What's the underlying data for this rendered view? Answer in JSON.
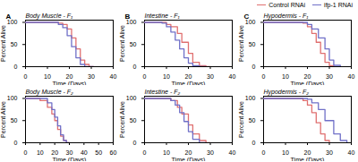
{
  "chart_data": [
    {
      "type": "step",
      "title": "Body Muscle - F₁",
      "annotations": [
        "A"
      ],
      "xlabel": "Time (Days)",
      "ylabel": "Percent Alive",
      "xlim": [
        0,
        40
      ],
      "ylim": [
        0,
        105
      ],
      "xticks": [
        0,
        10,
        20,
        30,
        40
      ],
      "yticks": [
        0,
        50,
        100
      ],
      "grid": false,
      "legend": "upper right",
      "series": [
        {
          "name": "Control RNAi",
          "color": "#e07070",
          "x": [
            0,
            5,
            10,
            15,
            17,
            19,
            21,
            23,
            25,
            27,
            29,
            31
          ],
          "values": [
            100,
            100,
            100,
            98,
            95,
            85,
            65,
            40,
            15,
            5,
            0,
            0
          ]
        },
        {
          "name": "ifp-1 RNAi",
          "color": "#7070c8",
          "x": [
            0,
            5,
            10,
            15,
            17,
            19,
            21,
            23,
            25,
            27,
            29,
            31
          ],
          "values": [
            100,
            100,
            100,
            95,
            88,
            70,
            45,
            20,
            5,
            0,
            0,
            0
          ]
        }
      ]
    },
    {
      "type": "step",
      "title": "Intestine - F₁",
      "annotations": [
        "B"
      ],
      "xlabel": "Time (Days)",
      "ylabel": "Percent Alive",
      "xlim": [
        0,
        40
      ],
      "ylim": [
        0,
        105
      ],
      "xticks": [
        0,
        10,
        20,
        30,
        40
      ],
      "yticks": [
        0,
        50,
        100
      ],
      "grid": false,
      "series": [
        {
          "name": "Control RNAi",
          "color": "#e07070",
          "x": [
            0,
            5,
            8,
            10,
            12,
            15,
            17,
            20,
            22,
            25,
            28,
            30
          ],
          "values": [
            100,
            100,
            100,
            95,
            90,
            75,
            55,
            30,
            10,
            2,
            0,
            0
          ]
        },
        {
          "name": "ifp-1 RNAi",
          "color": "#7070c8",
          "x": [
            0,
            5,
            8,
            10,
            12,
            14,
            16,
            18,
            20,
            22,
            25,
            28
          ],
          "values": [
            100,
            100,
            98,
            90,
            78,
            60,
            40,
            20,
            8,
            2,
            0,
            0
          ]
        }
      ]
    },
    {
      "type": "step",
      "title": "Hypodermis - F₁",
      "annotations": [
        "C"
      ],
      "xlabel": "Time (Days)",
      "ylabel": "Percent Alive",
      "xlim": [
        0,
        40
      ],
      "ylim": [
        0,
        105
      ],
      "xticks": [
        0,
        10,
        20,
        30,
        40
      ],
      "yticks": [
        0,
        50,
        100
      ],
      "grid": false,
      "series": [
        {
          "name": "Control RNAi",
          "color": "#e07070",
          "x": [
            0,
            5,
            10,
            15,
            18,
            20,
            22,
            24,
            26,
            28,
            30,
            32
          ],
          "values": [
            100,
            100,
            100,
            100,
            98,
            90,
            75,
            55,
            30,
            10,
            2,
            0
          ]
        },
        {
          "name": "ifp-1 RNAi",
          "color": "#7070c8",
          "x": [
            0,
            5,
            10,
            15,
            18,
            20,
            22,
            25,
            28,
            30,
            32,
            35
          ],
          "values": [
            100,
            100,
            100,
            100,
            100,
            95,
            85,
            65,
            40,
            15,
            3,
            0
          ]
        }
      ]
    },
    {
      "type": "step",
      "title": "Body Muscle - F₂",
      "xlabel": "Time (Days)",
      "ylabel": "Percent Alive",
      "xlim": [
        0,
        60
      ],
      "ylim": [
        0,
        105
      ],
      "xticks": [
        0,
        10,
        20,
        30,
        40,
        50,
        60
      ],
      "yticks": [
        0,
        50,
        100
      ],
      "grid": false,
      "series": [
        {
          "name": "Control RNAi",
          "color": "#e07070",
          "x": [
            0,
            5,
            10,
            15,
            18,
            20,
            22,
            24,
            26,
            28,
            30
          ],
          "values": [
            100,
            100,
            95,
            80,
            65,
            50,
            30,
            15,
            5,
            0,
            0
          ]
        },
        {
          "name": "ifp-1 RNAi",
          "color": "#7070c8",
          "x": [
            0,
            5,
            10,
            15,
            18,
            20,
            22,
            24,
            26,
            28,
            30
          ],
          "values": [
            100,
            100,
            100,
            90,
            75,
            58,
            38,
            18,
            5,
            0,
            0
          ]
        }
      ]
    },
    {
      "type": "step",
      "title": "Intestine - F₂",
      "xlabel": "Time (Days)",
      "ylabel": "Percent Alive",
      "xlim": [
        0,
        40
      ],
      "ylim": [
        0,
        105
      ],
      "xticks": [
        0,
        10,
        20,
        30,
        40
      ],
      "yticks": [
        0,
        50,
        100
      ],
      "grid": false,
      "series": [
        {
          "name": "Control RNAi",
          "color": "#e07070",
          "x": [
            0,
            5,
            10,
            12,
            15,
            17,
            20,
            22,
            25,
            28,
            30
          ],
          "values": [
            100,
            100,
            100,
            95,
            80,
            65,
            40,
            20,
            5,
            0,
            0
          ]
        },
        {
          "name": "ifp-1 RNAi",
          "color": "#7070c8",
          "x": [
            0,
            5,
            10,
            12,
            14,
            16,
            18,
            20,
            22,
            25,
            28
          ],
          "values": [
            100,
            100,
            100,
            95,
            85,
            68,
            48,
            25,
            8,
            0,
            0
          ]
        }
      ]
    },
    {
      "type": "step",
      "title": "Hypodermis - F₂",
      "xlabel": "Time (Days)",
      "ylabel": "Percent Alive",
      "xlim": [
        0,
        40
      ],
      "ylim": [
        0,
        105
      ],
      "xticks": [
        0,
        10,
        20,
        30,
        40
      ],
      "yticks": [
        0,
        50,
        100
      ],
      "grid": false,
      "series": [
        {
          "name": "Control RNAi",
          "color": "#e07070",
          "x": [
            0,
            5,
            10,
            15,
            18,
            20,
            22,
            24,
            26,
            28,
            30
          ],
          "values": [
            100,
            100,
            100,
            100,
            95,
            85,
            68,
            45,
            20,
            5,
            0
          ]
        },
        {
          "name": "ifp-1 RNAi",
          "color": "#7070c8",
          "x": [
            0,
            5,
            10,
            15,
            18,
            20,
            22,
            25,
            28,
            32,
            35,
            38
          ],
          "values": [
            100,
            100,
            100,
            100,
            100,
            98,
            90,
            75,
            50,
            20,
            5,
            0
          ]
        }
      ]
    }
  ]
}
